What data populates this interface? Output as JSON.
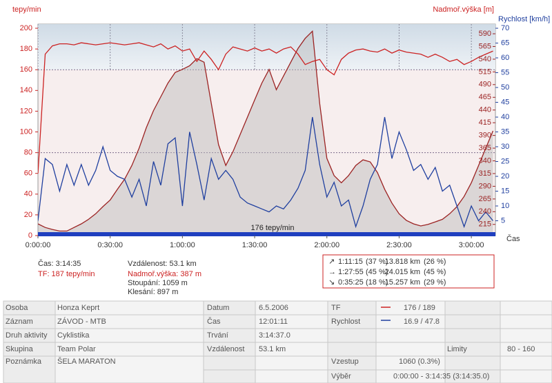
{
  "chart_data": {
    "type": "line",
    "ylabel": "tepy/min",
    "y3label": "Nadmoř.výška [m]",
    "y2label": "Rychlost [km/h]",
    "xlabel": "Čas",
    "annotation": "176 tepy/min",
    "x": [
      0,
      180,
      360,
      540,
      720,
      900,
      1080,
      1260,
      1440,
      1620,
      1800,
      1980,
      2160,
      2340,
      2520,
      2700,
      2880,
      3060,
      3240,
      3420,
      3600,
      3780,
      3960,
      4140,
      4320,
      4500,
      4680,
      4860,
      5040,
      5220,
      5400,
      5580,
      5760,
      5940,
      6120,
      6300,
      6480,
      6660,
      6840,
      7020,
      7200,
      7380,
      7560,
      7740,
      7920,
      8100,
      8280,
      8460,
      8640,
      8820,
      9000,
      9180,
      9360,
      9540,
      9720,
      9900,
      10080,
      10260,
      10440,
      10620,
      10800,
      10980,
      11160,
      11340
    ],
    "xlim": [
      0,
      11400
    ],
    "xticks": [
      {
        "value": 0,
        "label": "0:00:00"
      },
      {
        "value": 1800,
        "label": "0:30:00"
      },
      {
        "value": 3600,
        "label": "1:00:00"
      },
      {
        "value": 5400,
        "label": "1:30:00"
      },
      {
        "value": 7200,
        "label": "2:00:00"
      },
      {
        "value": 9000,
        "label": "2:30:00"
      },
      {
        "value": 10800,
        "label": "3:00:00"
      }
    ],
    "ylim": [
      0,
      204
    ],
    "yticks": [
      0,
      20,
      40,
      60,
      80,
      100,
      120,
      140,
      160,
      180,
      200
    ],
    "y2lim": [
      0,
      71.4
    ],
    "y2ticks": [
      5,
      10,
      15,
      20,
      25,
      30,
      35,
      40,
      45,
      50,
      55,
      60,
      65,
      70
    ],
    "y3lim": [
      193,
      609
    ],
    "y3ticks": [
      215,
      240,
      265,
      290,
      315,
      340,
      365,
      390,
      415,
      440,
      465,
      490,
      515,
      540,
      565,
      590
    ],
    "limits": [
      80,
      160
    ],
    "series": [
      {
        "axis": "y3",
        "color": "#9b2222",
        "area": true,
        "values": [
          216,
          209,
          205,
          202,
          202,
          209,
          216,
          225,
          236,
          250,
          263,
          284,
          304,
          331,
          365,
          405,
          439,
          466,
          493,
          514,
          520,
          527,
          541,
          534,
          453,
          372,
          331,
          358,
          392,
          426,
          460,
          493,
          520,
          480,
          507,
          534,
          561,
          581,
          595,
          453,
          345,
          311,
          297,
          311,
          331,
          342,
          338,
          317,
          284,
          257,
          236,
          223,
          216,
          212,
          215,
          220,
          225,
          236,
          250,
          270,
          297,
          331,
          365,
          399
        ]
      },
      {
        "axis": "y",
        "color": "#cc2222",
        "values": [
          60,
          175,
          183,
          185,
          185,
          184,
          186,
          185,
          184,
          185,
          186,
          185,
          184,
          185,
          186,
          184,
          182,
          185,
          180,
          183,
          178,
          180,
          168,
          178,
          170,
          160,
          175,
          182,
          180,
          178,
          181,
          178,
          180,
          176,
          180,
          182,
          175,
          165,
          168,
          170,
          160,
          155,
          170,
          176,
          179,
          180,
          178,
          177,
          180,
          176,
          179,
          177,
          176,
          175,
          172,
          175,
          172,
          168,
          170,
          165,
          168,
          172,
          175,
          178
        ]
      },
      {
        "axis": "y2",
        "color": "#1f3f9f",
        "values": [
          5,
          26,
          24,
          15,
          24,
          17,
          24,
          17,
          22,
          30,
          22,
          20,
          19,
          13,
          19,
          10,
          25,
          17,
          31,
          33,
          10,
          35,
          24,
          12,
          26,
          19,
          22,
          19,
          13,
          11,
          10,
          9,
          8,
          10,
          9,
          12,
          16,
          22,
          40,
          24,
          13,
          18,
          10,
          12,
          3,
          10,
          19,
          24,
          40,
          26,
          35,
          29,
          22,
          24,
          19,
          23,
          15,
          17,
          10,
          3,
          10,
          5,
          8,
          5
        ]
      }
    ]
  },
  "summary": {
    "time": "Čas: 3:14:35",
    "hr": "TF: 187 tepy/min",
    "distance": "Vzdálenost: 53.1 km",
    "altitude": "Nadmoř.výška: 387 m",
    "ascent": "Stoupání: 1059 m",
    "descent": "Klesání: 897 m"
  },
  "splits": [
    {
      "arrow": "↗",
      "time": "1:11:15",
      "time_pct": "(37 %)",
      "distance": "13.818 km",
      "distance_pct": "(26 %)"
    },
    {
      "arrow": "→",
      "time": "1:27:55",
      "time_pct": "(45 %)",
      "distance": "24.015 km",
      "distance_pct": "(45 %)"
    },
    {
      "arrow": "↘",
      "time": "0:35:25",
      "time_pct": "(18 %)",
      "distance": "15.257 km",
      "distance_pct": "(29 %)"
    }
  ],
  "table": {
    "rows": [
      [
        "Osoba",
        "Honza Keprt",
        "Datum",
        "6.5.2006",
        "TF",
        "176 / 189"
      ],
      [
        "Záznam",
        "ZÁVOD - MTB",
        "Čas",
        "12:01:11",
        "Rychlost",
        "16.9 / 47.8"
      ],
      [
        "Druh aktivity",
        "Cyklistika",
        "Trvání",
        "3:14:37.0"
      ],
      [
        "Skupina",
        "Team Polar",
        "Vzdálenost",
        "53.1 km",
        "Limity",
        "80 - 160"
      ],
      [
        "Poznámka",
        "ŠELA MARATON",
        "Vzestup",
        "1060 (0.3%)"
      ],
      [
        "Výběr",
        "0:00:00 - 3:14:35 (3:14:35.0)"
      ]
    ]
  }
}
